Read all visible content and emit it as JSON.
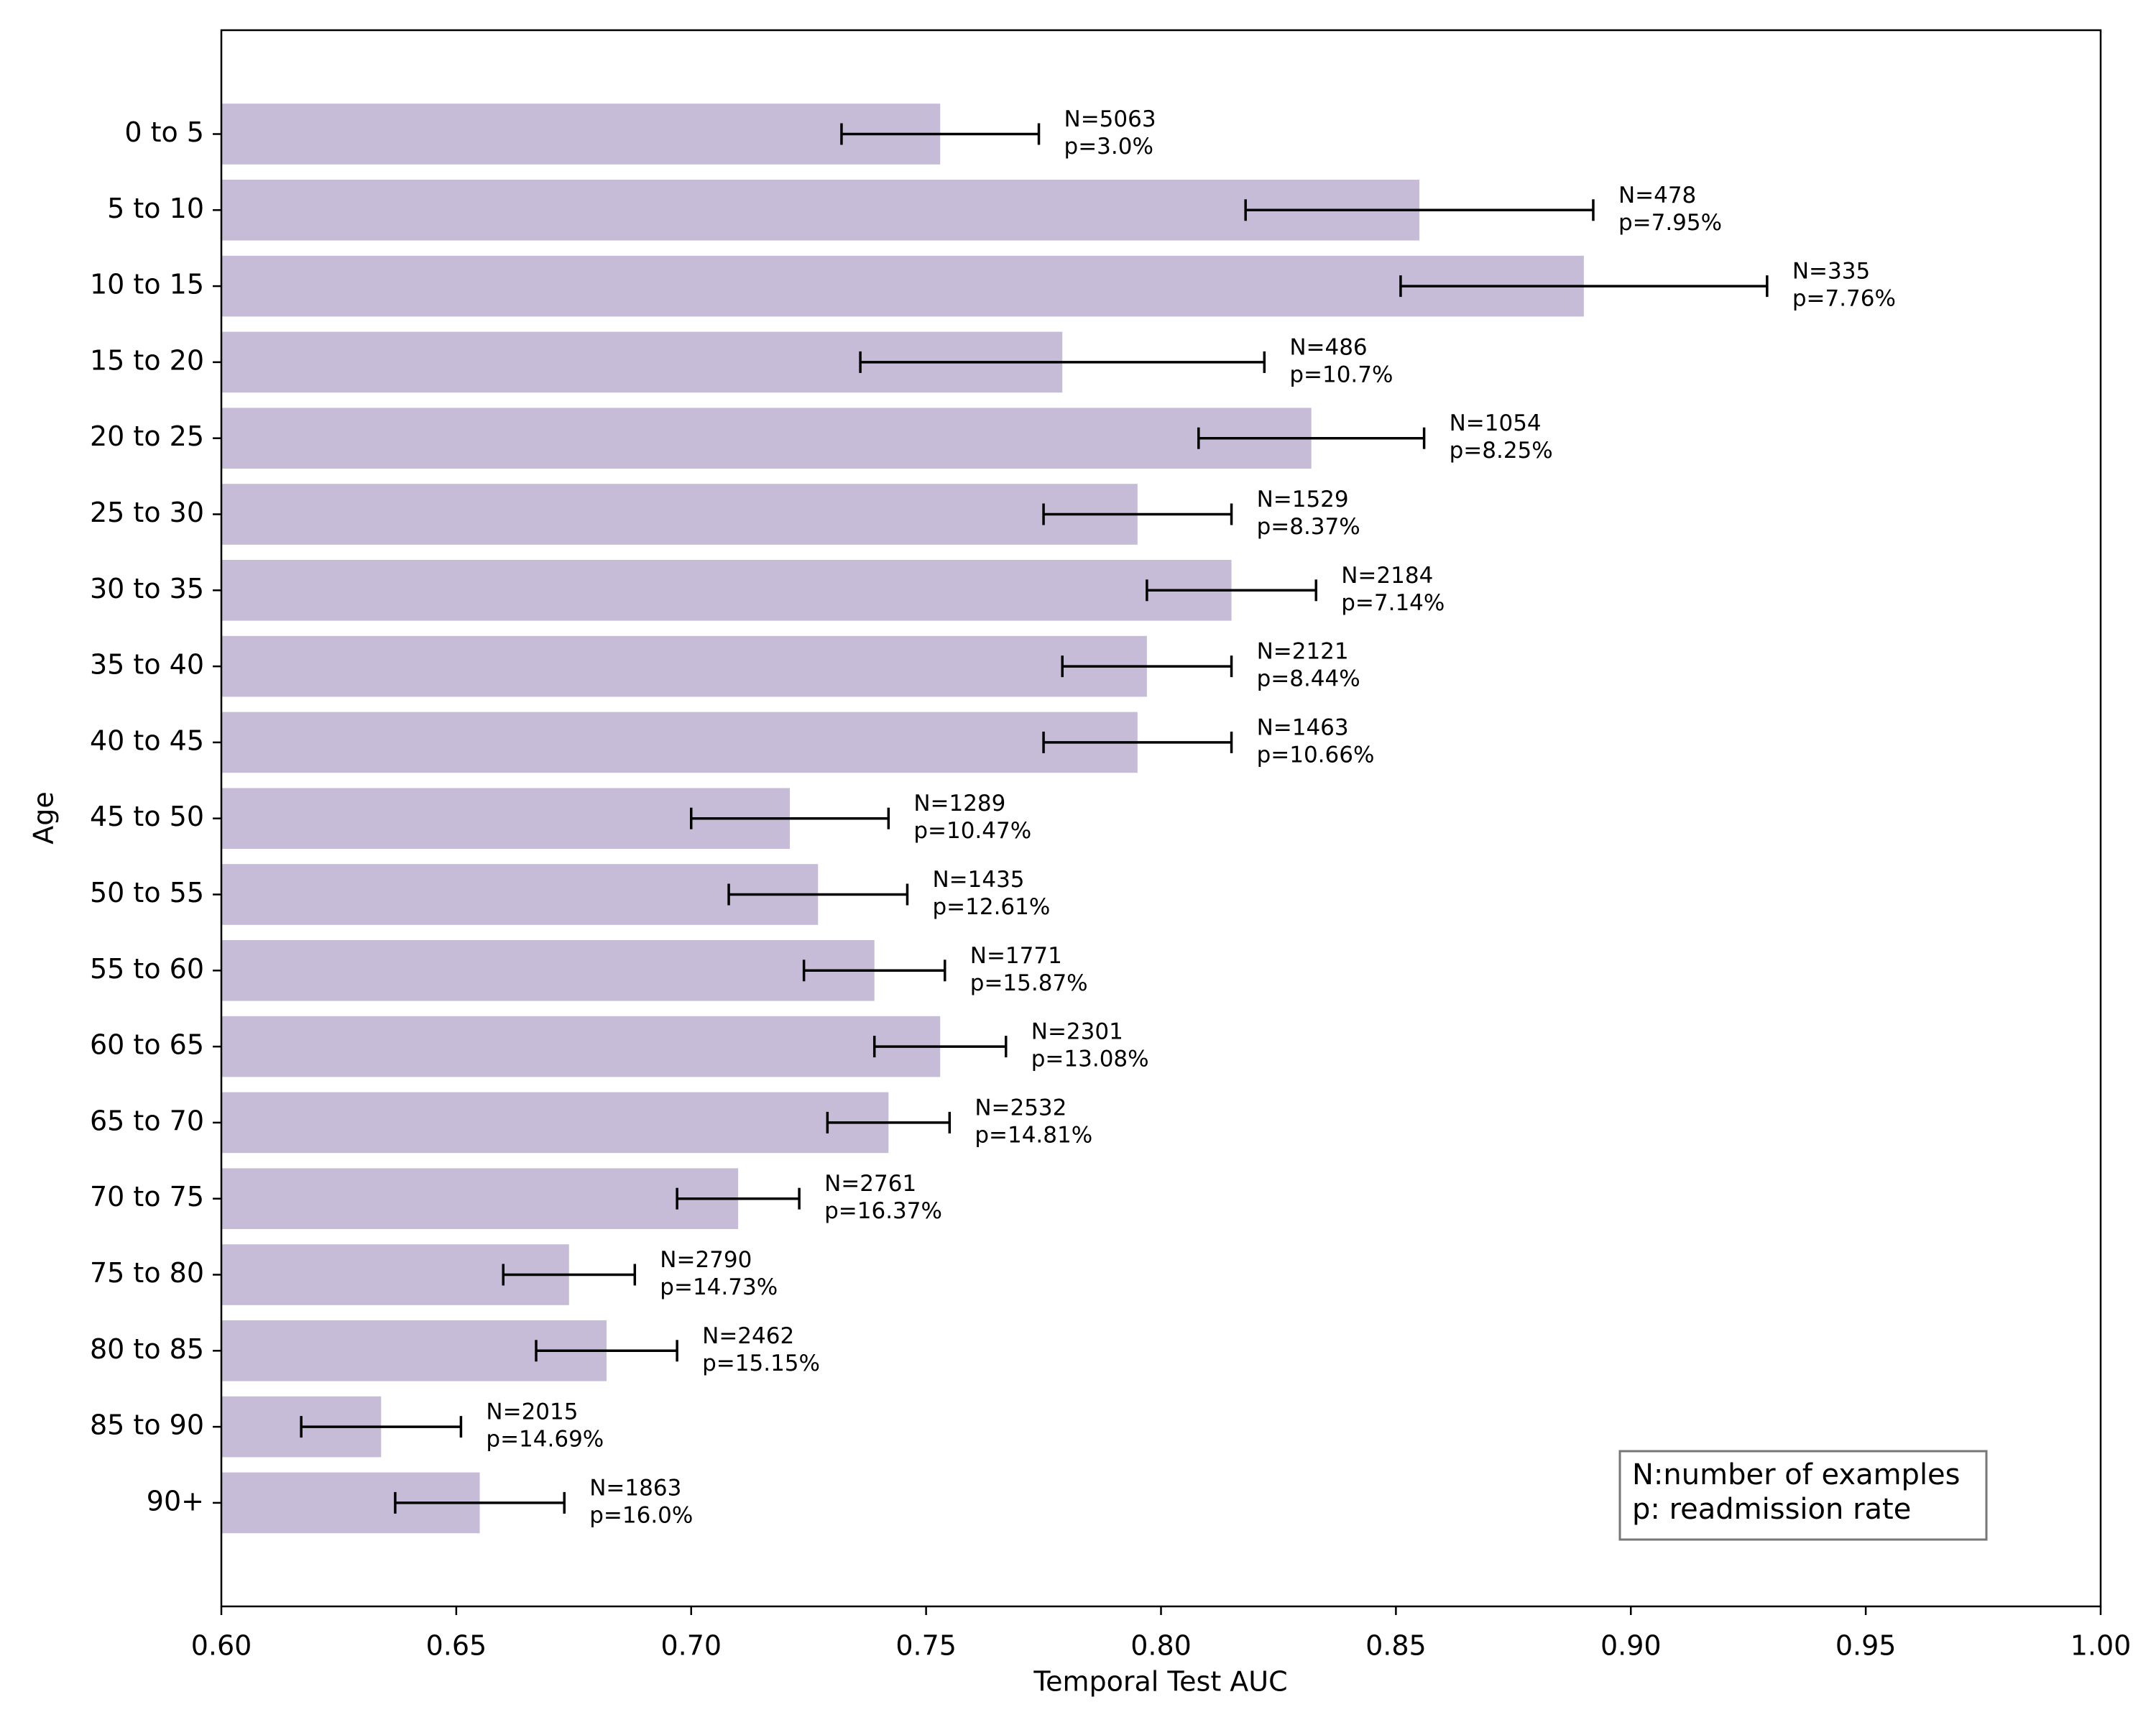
{
  "chart_data": {
    "type": "bar",
    "orientation": "horizontal",
    "xlabel": "Temporal Test AUC",
    "ylabel": "Age",
    "categories": [
      "0 to 5",
      "5 to 10",
      "10 to 15",
      "15 to 20",
      "20 to 25",
      "25 to 30",
      "30 to 35",
      "35 to 40",
      "40 to 45",
      "45 to 50",
      "50 to 55",
      "55 to 60",
      "60 to 65",
      "65 to 70",
      "70 to 75",
      "75 to 80",
      "80 to 85",
      "85 to 90",
      "90+"
    ],
    "values": [
      0.753,
      0.855,
      0.89,
      0.779,
      0.832,
      0.795,
      0.815,
      0.797,
      0.795,
      0.721,
      0.727,
      0.739,
      0.753,
      0.742,
      0.71,
      0.674,
      0.682,
      0.634,
      0.655
    ],
    "errors": [
      0.021,
      0.037,
      0.039,
      0.043,
      0.024,
      0.02,
      0.018,
      0.018,
      0.02,
      0.021,
      0.019,
      0.015,
      0.014,
      0.013,
      0.013,
      0.014,
      0.015,
      0.017,
      0.018
    ],
    "annotations": [
      {
        "n": "N=5063",
        "p": "p=3.0%"
      },
      {
        "n": "N=478",
        "p": "p=7.95%"
      },
      {
        "n": "N=335",
        "p": "p=7.76%"
      },
      {
        "n": "N=486",
        "p": "p=10.7%"
      },
      {
        "n": "N=1054",
        "p": "p=8.25%"
      },
      {
        "n": "N=1529",
        "p": "p=8.37%"
      },
      {
        "n": "N=2184",
        "p": "p=7.14%"
      },
      {
        "n": "N=2121",
        "p": "p=8.44%"
      },
      {
        "n": "N=1463",
        "p": "p=10.66%"
      },
      {
        "n": "N=1289",
        "p": "p=10.47%"
      },
      {
        "n": "N=1435",
        "p": "p=12.61%"
      },
      {
        "n": "N=1771",
        "p": "p=15.87%"
      },
      {
        "n": "N=2301",
        "p": "p=13.08%"
      },
      {
        "n": "N=2532",
        "p": "p=14.81%"
      },
      {
        "n": "N=2761",
        "p": "p=16.37%"
      },
      {
        "n": "N=2790",
        "p": "p=14.73%"
      },
      {
        "n": "N=2462",
        "p": "p=15.15%"
      },
      {
        "n": "N=2015",
        "p": "p=14.69%"
      },
      {
        "n": "N=1863",
        "p": "p=16.0%"
      }
    ],
    "legend_text": [
      "N:number of examples",
      "p: readmission rate"
    ],
    "color": "#c6bcd7",
    "error_color": "#000000",
    "xlim": [
      0.6,
      1.0
    ],
    "xticks": [
      {
        "value": 0.6,
        "label": "0.60"
      },
      {
        "value": 0.65,
        "label": "0.65"
      },
      {
        "value": 0.7,
        "label": "0.70"
      },
      {
        "value": 0.75,
        "label": "0.75"
      },
      {
        "value": 0.8,
        "label": "0.80"
      },
      {
        "value": 0.85,
        "label": "0.85"
      },
      {
        "value": 0.9,
        "label": "0.90"
      },
      {
        "value": 0.95,
        "label": "0.95"
      },
      {
        "value": 1.0,
        "label": "1.00"
      }
    ]
  }
}
